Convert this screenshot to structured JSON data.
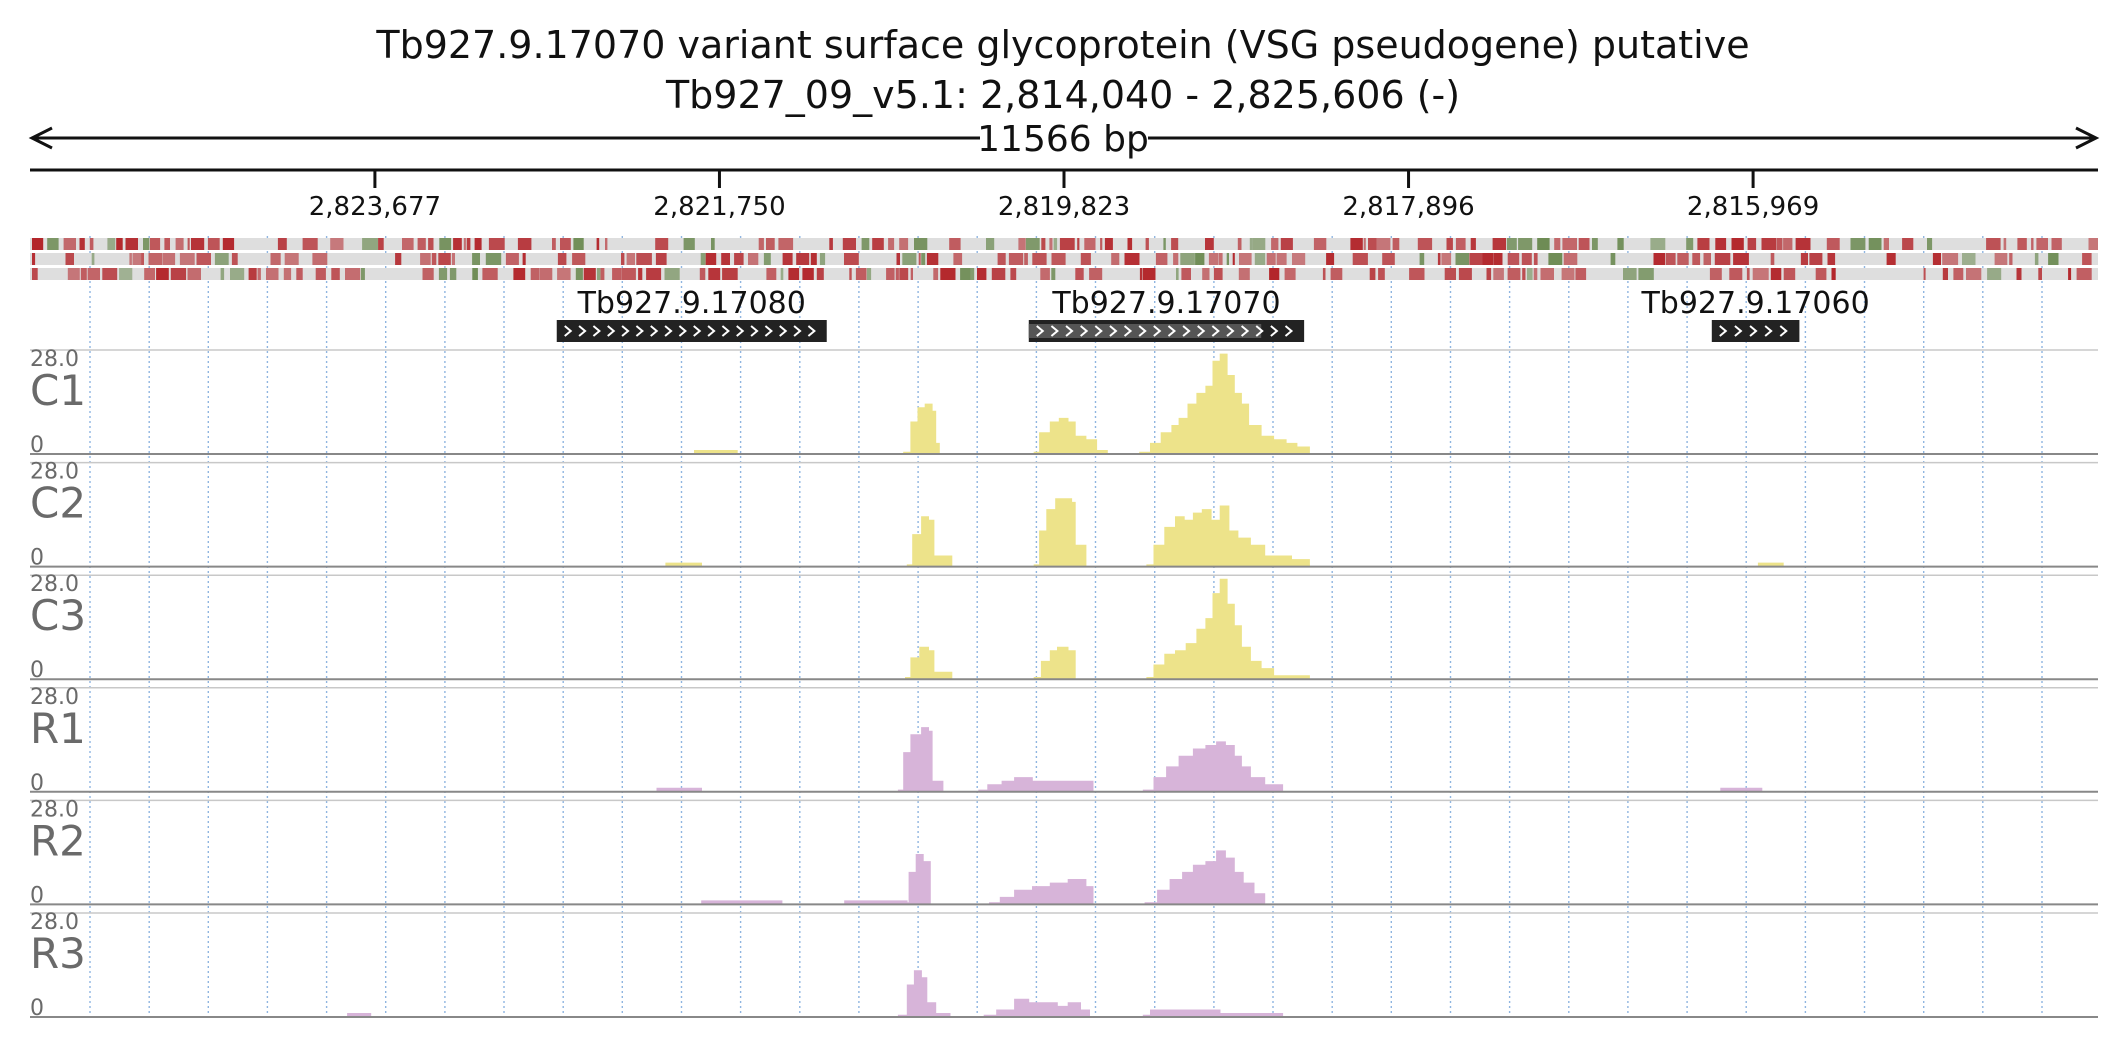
{
  "header": {
    "title_line1": "Tb927.9.17070  variant surface glycoprotein (VSG  pseudogene)  putative",
    "title_line2": "Tb927_09_v5.1: 2,814,040 - 2,825,606 (-)",
    "span_label": "11566 bp"
  },
  "chart_data": {
    "type": "area",
    "region": {
      "chromosome": "Tb927_09_v5.1",
      "start": 2814040,
      "end": 2825606,
      "strand": "-",
      "length_bp": 11566
    },
    "x_axis": {
      "reversed": true,
      "ticks": [
        {
          "value": 2823677,
          "label": "2,823,677"
        },
        {
          "value": 2821750,
          "label": "2,821,750"
        },
        {
          "value": 2819823,
          "label": "2,819,823"
        },
        {
          "value": 2817896,
          "label": "2,817,896"
        },
        {
          "value": 2815969,
          "label": "2,815,969"
        }
      ]
    },
    "grid": true,
    "colors": {
      "condition_C": "#ede38a",
      "condition_R": "#d7b4d9",
      "gene_box": "#222222",
      "gene_box_light": "#555555",
      "feature_red": "#b3262b",
      "feature_green": "#6e8c55",
      "feature_bg": "#dedede",
      "grid_line": "#8fb5e0"
    },
    "genes": [
      {
        "name": "Tb927.9.17080",
        "start": 2821150,
        "end": 2822660,
        "highlighted_part": null
      },
      {
        "name": "Tb927.9.17070",
        "start": 2818480,
        "end": 2820020,
        "highlighted_part": [
          2818720,
          2820020
        ]
      },
      {
        "name": "Tb927.9.17060",
        "start": 2815710,
        "end": 2816200,
        "highlighted_part": null
      }
    ],
    "tracks": [
      {
        "name": "C1",
        "ymax": "28.0",
        "ymin": "0",
        "color": "#ede38a",
        "segments": [
          [
            [
              2821890,
              1
            ],
            [
              2821650,
              1
            ]
          ],
          [
            [
              2820720,
              0.5
            ],
            [
              2820680,
              9
            ],
            [
              2820640,
              13
            ],
            [
              2820600,
              14
            ],
            [
              2820560,
              12
            ],
            [
              2820540,
              3
            ],
            [
              2820520,
              0.5
            ]
          ],
          [
            [
              2819990,
              0.5
            ],
            [
              2819960,
              6
            ],
            [
              2819900,
              9
            ],
            [
              2819850,
              10
            ],
            [
              2819800,
              9
            ],
            [
              2819760,
              5
            ],
            [
              2819700,
              4
            ],
            [
              2819640,
              1
            ],
            [
              2819580,
              1
            ]
          ],
          [
            [
              2819400,
              0.5
            ],
            [
              2819340,
              3
            ],
            [
              2819280,
              6
            ],
            [
              2819220,
              8
            ],
            [
              2819180,
              10
            ],
            [
              2819130,
              14
            ],
            [
              2819080,
              17
            ],
            [
              2819030,
              19
            ],
            [
              2818990,
              26
            ],
            [
              2818950,
              28
            ],
            [
              2818910,
              22
            ],
            [
              2818870,
              17
            ],
            [
              2818830,
              14
            ],
            [
              2818790,
              8
            ],
            [
              2818720,
              5
            ],
            [
              2818650,
              4
            ],
            [
              2818580,
              3
            ],
            [
              2818520,
              2
            ],
            [
              2818450,
              1
            ]
          ]
        ]
      },
      {
        "name": "C2",
        "ymax": "28.0",
        "ymin": "0",
        "color": "#ede38a",
        "segments": [
          [
            [
              2822050,
              1
            ],
            [
              2821850,
              1
            ]
          ],
          [
            [
              2820700,
              0.5
            ],
            [
              2820670,
              9
            ],
            [
              2820620,
              14
            ],
            [
              2820580,
              13
            ],
            [
              2820550,
              3
            ],
            [
              2820450,
              1
            ]
          ],
          [
            [
              2819990,
              0.5
            ],
            [
              2819960,
              10
            ],
            [
              2819920,
              16
            ],
            [
              2819870,
              19
            ],
            [
              2819810,
              19
            ],
            [
              2819780,
              18
            ],
            [
              2819760,
              6
            ],
            [
              2819700,
              1
            ]
          ],
          [
            [
              2819360,
              0.5
            ],
            [
              2819320,
              6
            ],
            [
              2819260,
              11
            ],
            [
              2819200,
              14
            ],
            [
              2819150,
              13
            ],
            [
              2819100,
              15
            ],
            [
              2819050,
              16
            ],
            [
              2819000,
              13
            ],
            [
              2818950,
              17
            ],
            [
              2818900,
              10
            ],
            [
              2818850,
              8
            ],
            [
              2818780,
              6
            ],
            [
              2818700,
              3
            ],
            [
              2818620,
              3
            ],
            [
              2818550,
              2
            ],
            [
              2818450,
              1
            ]
          ],
          [
            [
              2815940,
              1
            ],
            [
              2815800,
              1
            ]
          ]
        ]
      },
      {
        "name": "C3",
        "ymax": "28.0",
        "ymin": "0",
        "color": "#ede38a",
        "segments": [
          [
            [
              2820710,
              0.5
            ],
            [
              2820680,
              6
            ],
            [
              2820630,
              9
            ],
            [
              2820580,
              8
            ],
            [
              2820550,
              2
            ],
            [
              2820450,
              1
            ]
          ],
          [
            [
              2819990,
              0.5
            ],
            [
              2819950,
              5
            ],
            [
              2819900,
              8
            ],
            [
              2819860,
              9
            ],
            [
              2819800,
              8
            ],
            [
              2819760,
              2
            ]
          ],
          [
            [
              2819360,
              0.5
            ],
            [
              2819320,
              4
            ],
            [
              2819260,
              7
            ],
            [
              2819200,
              8
            ],
            [
              2819140,
              10
            ],
            [
              2819080,
              14
            ],
            [
              2819030,
              17
            ],
            [
              2818990,
              24
            ],
            [
              2818950,
              28
            ],
            [
              2818910,
              21
            ],
            [
              2818870,
              15
            ],
            [
              2818830,
              9
            ],
            [
              2818780,
              5
            ],
            [
              2818720,
              3
            ],
            [
              2818650,
              1
            ],
            [
              2818450,
              1
            ]
          ]
        ]
      },
      {
        "name": "R1",
        "ymax": "28.0",
        "ymin": "0",
        "color": "#d7b4d9",
        "segments": [
          [
            [
              2822100,
              1
            ],
            [
              2821850,
              1
            ]
          ],
          [
            [
              2820750,
              0.5
            ],
            [
              2820720,
              11
            ],
            [
              2820680,
              16
            ],
            [
              2820620,
              18
            ],
            [
              2820580,
              17
            ],
            [
              2820560,
              3
            ],
            [
              2820500,
              1
            ]
          ],
          [
            [
              2820300,
              0.5
            ],
            [
              2820250,
              2
            ],
            [
              2820170,
              3
            ],
            [
              2820100,
              4
            ],
            [
              2820000,
              3
            ],
            [
              2819900,
              3
            ],
            [
              2819800,
              3
            ],
            [
              2819700,
              3
            ],
            [
              2819660,
              1
            ]
          ],
          [
            [
              2819380,
              0.5
            ],
            [
              2819320,
              4
            ],
            [
              2819250,
              7
            ],
            [
              2819180,
              10
            ],
            [
              2819100,
              12
            ],
            [
              2819030,
              13
            ],
            [
              2818970,
              14
            ],
            [
              2818920,
              13
            ],
            [
              2818870,
              10
            ],
            [
              2818830,
              7
            ],
            [
              2818780,
              4
            ],
            [
              2818700,
              2
            ],
            [
              2818600,
              2
            ]
          ],
          [
            [
              2816150,
              1
            ],
            [
              2815920,
              1
            ]
          ]
        ]
      },
      {
        "name": "R2",
        "ymax": "28.0",
        "ymin": "0",
        "color": "#d7b4d9",
        "segments": [
          [
            [
              2821850,
              1
            ],
            [
              2821400,
              1
            ]
          ],
          [
            [
              2821050,
              1
            ],
            [
              2820700,
              1
            ]
          ],
          [
            [
              2820720,
              0.5
            ],
            [
              2820690,
              9
            ],
            [
              2820650,
              14
            ],
            [
              2820610,
              12
            ],
            [
              2820570,
              3
            ]
          ],
          [
            [
              2820240,
              0.5
            ],
            [
              2820180,
              2
            ],
            [
              2820100,
              4
            ],
            [
              2820000,
              5
            ],
            [
              2819900,
              6
            ],
            [
              2819800,
              7
            ],
            [
              2819700,
              5
            ],
            [
              2819660,
              1
            ]
          ],
          [
            [
              2819370,
              0.5
            ],
            [
              2819300,
              4
            ],
            [
              2819230,
              7
            ],
            [
              2819160,
              9
            ],
            [
              2819100,
              11
            ],
            [
              2819030,
              12
            ],
            [
              2818970,
              15
            ],
            [
              2818920,
              13
            ],
            [
              2818870,
              9
            ],
            [
              2818820,
              6
            ],
            [
              2818760,
              3
            ],
            [
              2818700,
              1
            ]
          ]
        ]
      },
      {
        "name": "R3",
        "ymax": "28.0",
        "ymin": "0",
        "color": "#d7b4d9",
        "segments": [
          [
            [
              2823830,
              1
            ],
            [
              2823700,
              1
            ]
          ],
          [
            [
              2820750,
              0.5
            ],
            [
              2820700,
              9
            ],
            [
              2820660,
              13
            ],
            [
              2820620,
              11
            ],
            [
              2820590,
              4
            ],
            [
              2820540,
              1
            ],
            [
              2820460,
              1
            ]
          ],
          [
            [
              2820270,
              0.5
            ],
            [
              2820200,
              2
            ],
            [
              2820100,
              5
            ],
            [
              2820020,
              4
            ],
            [
              2819940,
              4
            ],
            [
              2819860,
              3
            ],
            [
              2819800,
              4
            ],
            [
              2819730,
              2
            ],
            [
              2819680,
              1
            ]
          ],
          [
            [
              2819380,
              0.5
            ],
            [
              2819340,
              2
            ],
            [
              2819260,
              2
            ],
            [
              2819180,
              2
            ],
            [
              2819050,
              2
            ],
            [
              2818950,
              1
            ],
            [
              2818780,
              1
            ],
            [
              2818600,
              1
            ]
          ]
        ]
      }
    ]
  }
}
